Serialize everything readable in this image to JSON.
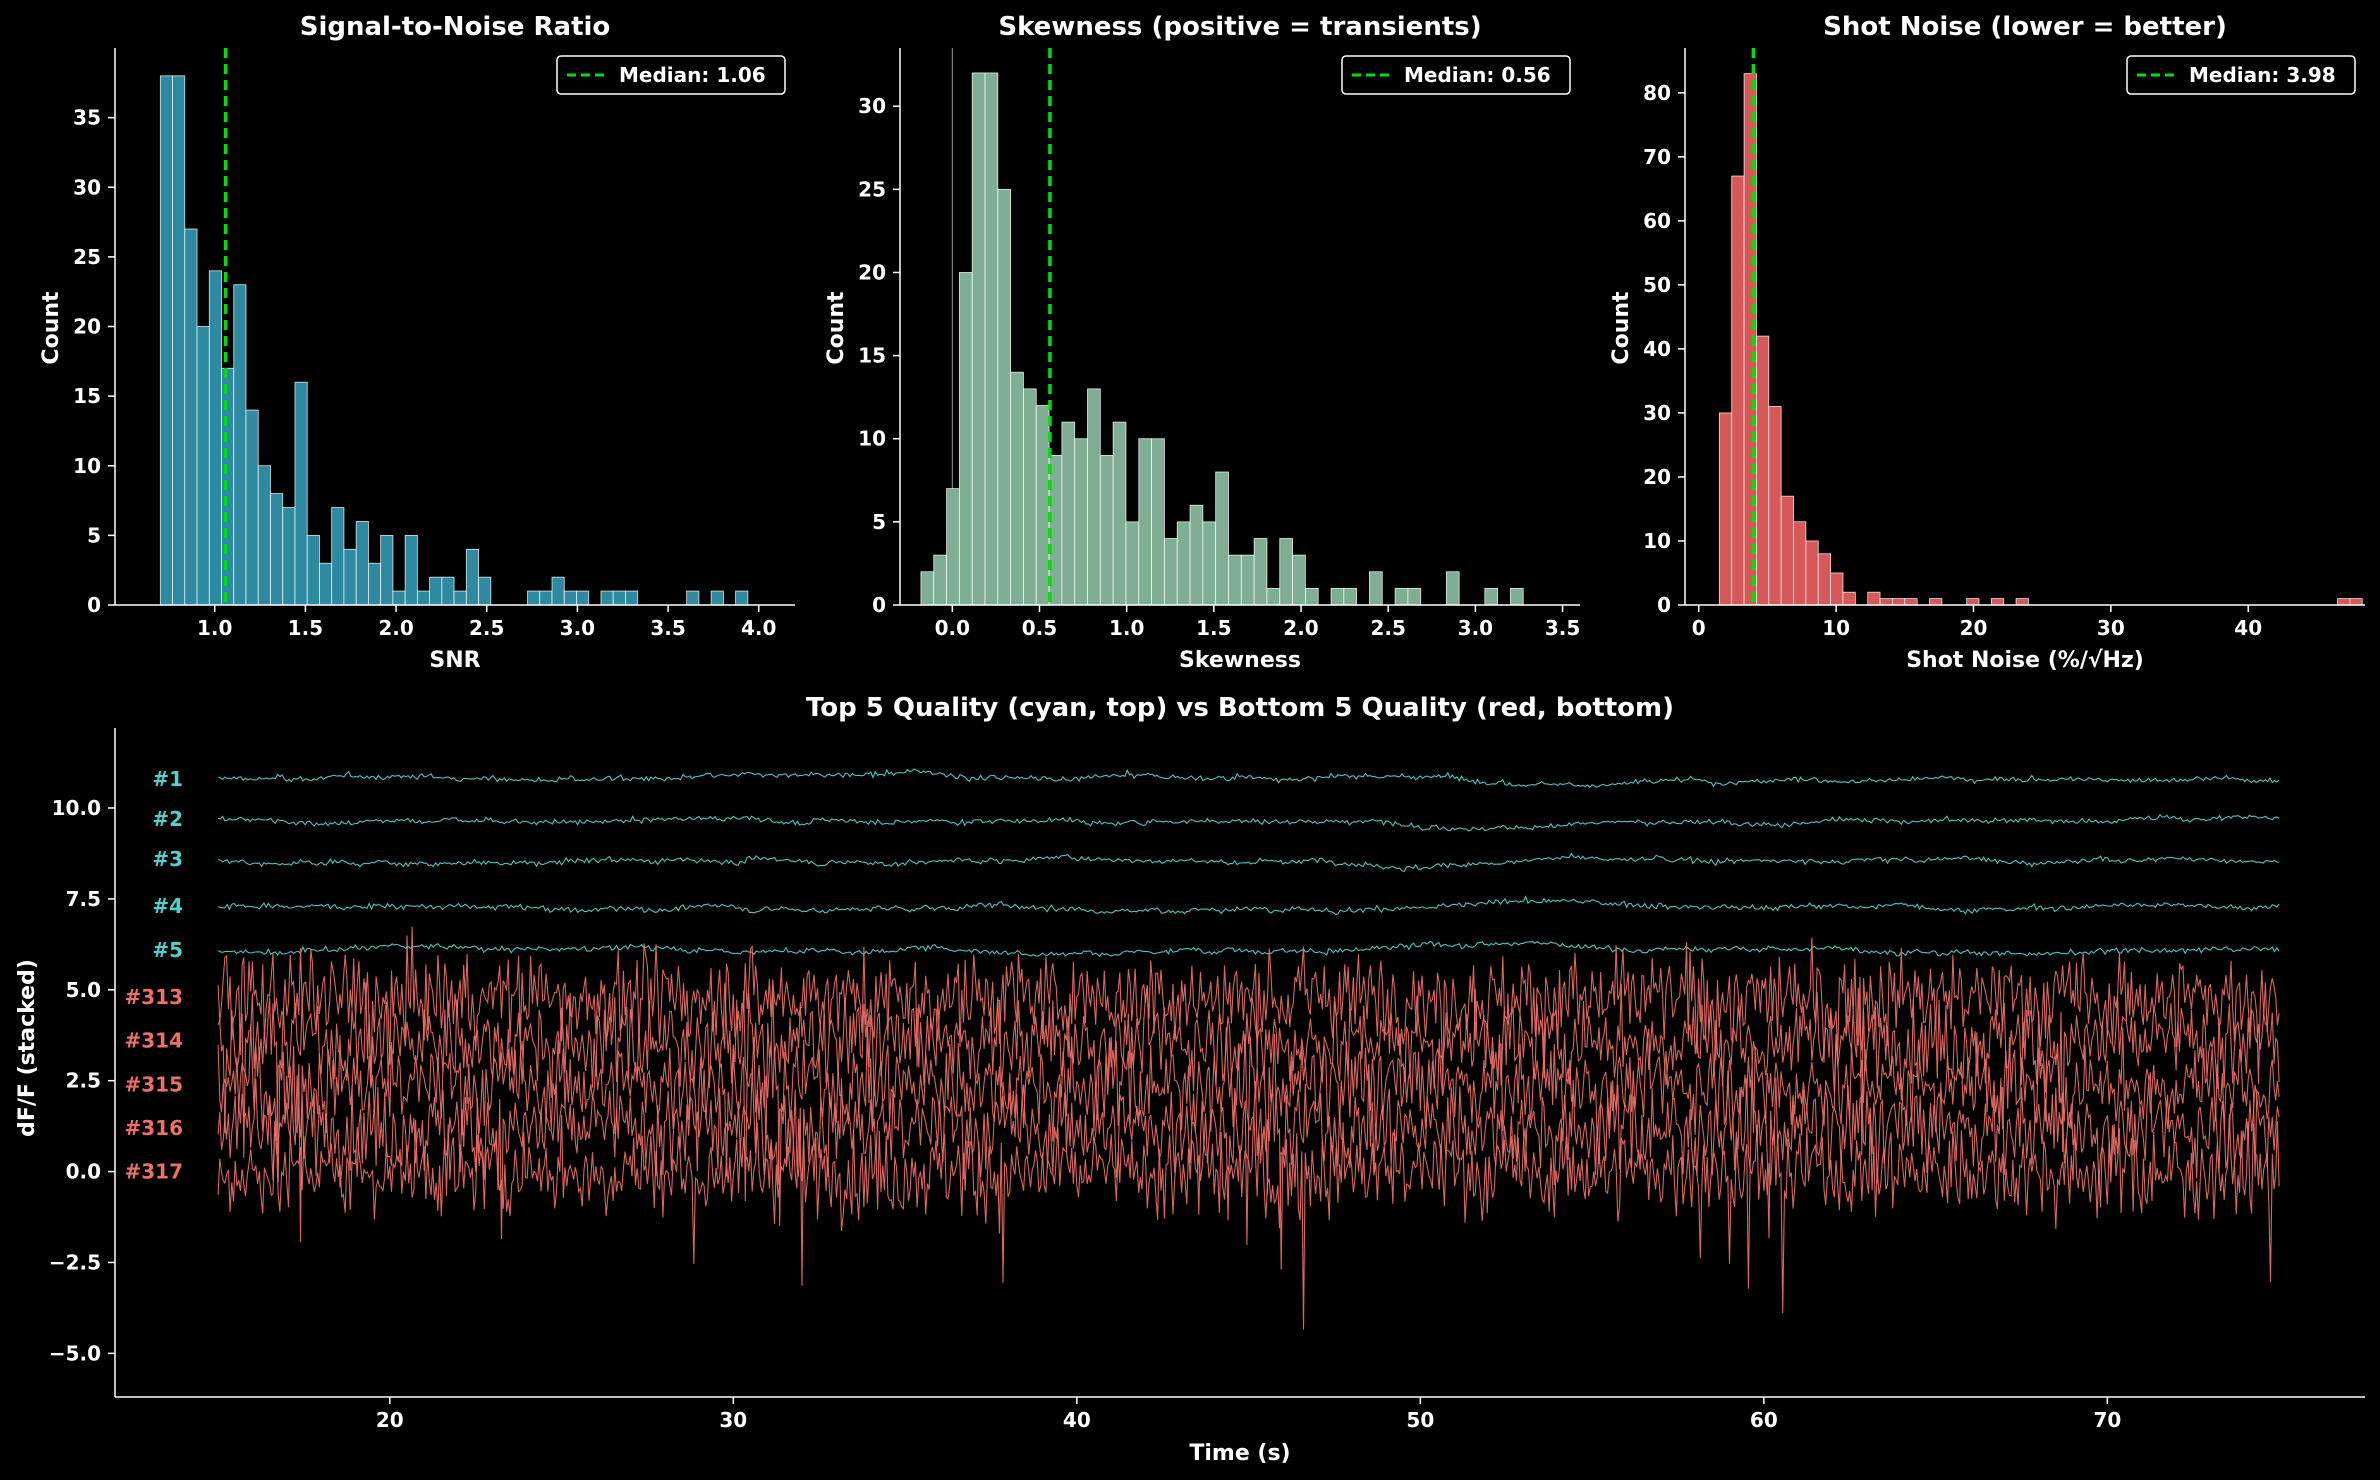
{
  "colors": {
    "background": "#000000",
    "snr_bar": "#2e8aa1",
    "skew_bar": "#7fae95",
    "noise_bar": "#d65858",
    "median_line": "#00e000",
    "top_trace": "#4fd1cc",
    "bottom_trace": "#f07068"
  },
  "chart_data": [
    {
      "type": "bar",
      "title": "Signal-to-Noise Ratio",
      "xlabel": "SNR",
      "ylabel": "Count",
      "xlim": [
        0.45,
        4.2
      ],
      "ylim": [
        0,
        40
      ],
      "xticks": [
        1.0,
        1.5,
        2.0,
        2.5,
        3.0,
        3.5,
        4.0
      ],
      "xtick_labels": [
        "1.0",
        "1.5",
        "2.0",
        "2.5",
        "3.0",
        "3.5",
        "4.0"
      ],
      "yticks": [
        0,
        5,
        10,
        15,
        20,
        25,
        30,
        35
      ],
      "bin_start": 0.7,
      "bin_width": 0.0675,
      "values": [
        38,
        38,
        27,
        20,
        24,
        17,
        23,
        14,
        10,
        8,
        7,
        16,
        5,
        3,
        7,
        4,
        6,
        3,
        5,
        1,
        5,
        1,
        2,
        2,
        1,
        4,
        2,
        0,
        0,
        0,
        1,
        1,
        2,
        1,
        1,
        0,
        1,
        1,
        1,
        0,
        0,
        0,
        0,
        1,
        0,
        1,
        0,
        1
      ],
      "legend": {
        "label": "Median: 1.06",
        "value": 1.06,
        "position": "top-right"
      }
    },
    {
      "type": "bar",
      "title": "Skewness (positive = transients)",
      "xlabel": "Skewness",
      "ylabel": "Count",
      "xlim": [
        -0.3,
        3.6
      ],
      "ylim": [
        0,
        33.5
      ],
      "xticks": [
        0.0,
        0.5,
        1.0,
        1.5,
        2.0,
        2.5,
        3.0,
        3.5
      ],
      "xtick_labels": [
        "0.0",
        "0.5",
        "1.0",
        "1.5",
        "2.0",
        "2.5",
        "3.0",
        "3.5"
      ],
      "yticks": [
        0,
        5,
        10,
        15,
        20,
        25,
        30
      ],
      "bin_start": -0.18,
      "bin_width": 0.0735,
      "zero_line": 0.0,
      "values": [
        2,
        3,
        7,
        20,
        32,
        32,
        25,
        14,
        13,
        12,
        9,
        11,
        10,
        13,
        9,
        11,
        5,
        10,
        10,
        4,
        5,
        6,
        5,
        8,
        3,
        3,
        4,
        1,
        4,
        3,
        1,
        0,
        1,
        1,
        0,
        2,
        0,
        1,
        1,
        0,
        0,
        2,
        0,
        0,
        1,
        0,
        1
      ],
      "legend": {
        "label": "Median: 0.56",
        "value": 0.56,
        "position": "top-right"
      }
    },
    {
      "type": "bar",
      "title": "Shot Noise (lower = better)",
      "xlabel": "Shot Noise (%/√Hz)",
      "ylabel": "Count",
      "xlim": [
        -1,
        48.5
      ],
      "ylim": [
        0,
        87
      ],
      "xticks": [
        0,
        10,
        20,
        30,
        40
      ],
      "xtick_labels": [
        "0",
        "10",
        "20",
        "30",
        "40"
      ],
      "yticks": [
        0,
        10,
        20,
        30,
        40,
        50,
        60,
        70,
        80
      ],
      "bin_start": 1.5,
      "bin_width": 0.9,
      "values": [
        30,
        67,
        83,
        42,
        31,
        17,
        13,
        10,
        8,
        5,
        2,
        0,
        2,
        1,
        1,
        1,
        0,
        1,
        0,
        0,
        1,
        0,
        1,
        0,
        1,
        0,
        0,
        0,
        0,
        0,
        0,
        0,
        0,
        0,
        0,
        0,
        0,
        0,
        0,
        0,
        0,
        0,
        0,
        0,
        0,
        0,
        0,
        0,
        0,
        0,
        1,
        1
      ],
      "legend": {
        "label": "Median: 3.98",
        "value": 3.98,
        "position": "top-right"
      }
    },
    {
      "type": "line",
      "title": "Top 5 Quality (cyan, top) vs Bottom 5 Quality (red, bottom)",
      "xlabel": "Time (s)",
      "ylabel": "dF/F (stacked)",
      "xlim": [
        12,
        77.5
      ],
      "ylim": [
        -6.2,
        12.2
      ],
      "xticks": [
        20,
        30,
        40,
        50,
        60,
        70
      ],
      "xtick_labels": [
        "20",
        "30",
        "40",
        "50",
        "60",
        "70"
      ],
      "yticks": [
        10.0,
        7.5,
        5.0,
        2.5,
        0.0,
        -2.5,
        -5.0
      ],
      "ytick_labels": [
        "10.0",
        "7.5",
        "5.0",
        "2.5",
        "0.0",
        "−2.5",
        "−5.0"
      ],
      "x_range": [
        15,
        75
      ],
      "series": [
        {
          "name": "#1",
          "group": "top",
          "offset": 10.8
        },
        {
          "name": "#2",
          "group": "top",
          "offset": 9.7
        },
        {
          "name": "#3",
          "group": "top",
          "offset": 8.6
        },
        {
          "name": "#4",
          "group": "top",
          "offset": 7.3
        },
        {
          "name": "#5",
          "group": "top",
          "offset": 6.1
        },
        {
          "name": "#313",
          "group": "bottom",
          "offset": 4.8
        },
        {
          "name": "#314",
          "group": "bottom",
          "offset": 3.6
        },
        {
          "name": "#315",
          "group": "bottom",
          "offset": 2.4
        },
        {
          "name": "#316",
          "group": "bottom",
          "offset": 1.2
        },
        {
          "name": "#317",
          "group": "bottom",
          "offset": 0.0
        }
      ]
    }
  ]
}
